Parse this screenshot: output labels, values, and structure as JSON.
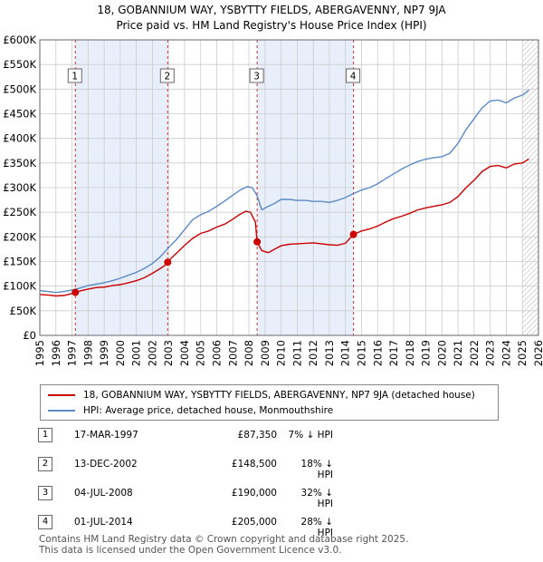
{
  "title_line1": "18, GOBANNIUM WAY, YSBYTTY FIELDS, ABERGAVENNY, NP7 9JA",
  "title_line2": "Price paid vs. HM Land Registry's House Price Index (HPI)",
  "colors": {
    "property": "#cc0000",
    "hpi": "#5b8ac6",
    "shade": "#e8effa",
    "grid": "#cccccc",
    "vline": "#cc3333"
  },
  "legend": {
    "property_label": "18, GOBANNIUM WAY, YSBYTTY FIELDS, ABERGAVENNY, NP7 9JA (detached house)",
    "hpi_label": "HPI: Average price, detached house, Monmouthshire"
  },
  "transactions": [
    {
      "num": "1",
      "date": "17-MAR-1997",
      "price": "£87,350",
      "hpi": "7% ↓ HPI"
    },
    {
      "num": "2",
      "date": "13-DEC-2002",
      "price": "£148,500",
      "hpi": "18% ↓ HPI"
    },
    {
      "num": "3",
      "date": "04-JUL-2008",
      "price": "£190,000",
      "hpi": "32% ↓ HPI"
    },
    {
      "num": "4",
      "date": "01-JUL-2014",
      "price": "£205,000",
      "hpi": "28% ↓ HPI"
    }
  ],
  "footer": {
    "line1": "Contains HM Land Registry data © Crown copyright and database right 2025.",
    "line2": "This data is licensed under the Open Government Licence v3.0."
  },
  "chart_data": {
    "type": "line",
    "xlim": [
      1995,
      2026
    ],
    "ylim": [
      0,
      600000
    ],
    "yticks": [
      0,
      50000,
      100000,
      150000,
      200000,
      250000,
      300000,
      350000,
      400000,
      450000,
      500000,
      550000,
      600000
    ],
    "ytick_labels": [
      "£0",
      "£50K",
      "£100K",
      "£150K",
      "£200K",
      "£250K",
      "£300K",
      "£350K",
      "£400K",
      "£450K",
      "£500K",
      "£550K",
      "£600K"
    ],
    "xticks": [
      1995,
      1996,
      1997,
      1998,
      1999,
      2000,
      2001,
      2002,
      2003,
      2004,
      2005,
      2006,
      2007,
      2008,
      2009,
      2010,
      2011,
      2012,
      2013,
      2014,
      2015,
      2016,
      2017,
      2018,
      2019,
      2020,
      2021,
      2022,
      2023,
      2024,
      2025,
      2026
    ],
    "grid": true,
    "shaded_ranges": [
      [
        1997.21,
        2002.95
      ],
      [
        2008.51,
        2014.5
      ]
    ],
    "hatched_from": 2025.0,
    "sales": [
      {
        "label": "1",
        "x": 1997.21,
        "y": 87350
      },
      {
        "label": "2",
        "x": 2002.95,
        "y": 148500
      },
      {
        "label": "3",
        "x": 2008.51,
        "y": 190000
      },
      {
        "label": "4",
        "x": 2014.5,
        "y": 205000
      }
    ],
    "series": [
      {
        "name": "18, GOBANNIUM WAY, YSBYTTY FIELDS, ABERGAVENNY, NP7 9JA (detached house)",
        "points": [
          [
            1995,
            83000
          ],
          [
            1995.5,
            82000
          ],
          [
            1996,
            80000
          ],
          [
            1996.5,
            81000
          ],
          [
            1997,
            85000
          ],
          [
            1997.21,
            87350
          ],
          [
            1997.6,
            91000
          ],
          [
            1998,
            94000
          ],
          [
            1998.5,
            97000
          ],
          [
            1999,
            98000
          ],
          [
            1999.5,
            101000
          ],
          [
            2000,
            103000
          ],
          [
            2000.5,
            107000
          ],
          [
            2001,
            111000
          ],
          [
            2001.5,
            117000
          ],
          [
            2002,
            126000
          ],
          [
            2002.5,
            136000
          ],
          [
            2002.9,
            145000
          ],
          [
            2002.95,
            148500
          ],
          [
            2003.2,
            158000
          ],
          [
            2003.6,
            170000
          ],
          [
            2004,
            183000
          ],
          [
            2004.5,
            197000
          ],
          [
            2005,
            207000
          ],
          [
            2005.5,
            212000
          ],
          [
            2006,
            220000
          ],
          [
            2006.5,
            226000
          ],
          [
            2007,
            236000
          ],
          [
            2007.4,
            245000
          ],
          [
            2007.8,
            252000
          ],
          [
            2008.1,
            250000
          ],
          [
            2008.4,
            230000
          ],
          [
            2008.51,
            190000
          ],
          [
            2008.8,
            172000
          ],
          [
            2009.2,
            168000
          ],
          [
            2009.6,
            175000
          ],
          [
            2010,
            182000
          ],
          [
            2010.5,
            185000
          ],
          [
            2011,
            186000
          ],
          [
            2011.5,
            187000
          ],
          [
            2012,
            188000
          ],
          [
            2012.5,
            186000
          ],
          [
            2013,
            184000
          ],
          [
            2013.5,
            183000
          ],
          [
            2014,
            187000
          ],
          [
            2014.5,
            205000
          ],
          [
            2015,
            212000
          ],
          [
            2015.5,
            216000
          ],
          [
            2016,
            222000
          ],
          [
            2016.5,
            230000
          ],
          [
            2017,
            237000
          ],
          [
            2017.5,
            242000
          ],
          [
            2018,
            248000
          ],
          [
            2018.5,
            255000
          ],
          [
            2019,
            259000
          ],
          [
            2019.5,
            262000
          ],
          [
            2020,
            265000
          ],
          [
            2020.5,
            270000
          ],
          [
            2021,
            282000
          ],
          [
            2021.5,
            300000
          ],
          [
            2022,
            315000
          ],
          [
            2022.5,
            333000
          ],
          [
            2023,
            343000
          ],
          [
            2023.5,
            345000
          ],
          [
            2024,
            340000
          ],
          [
            2024.5,
            348000
          ],
          [
            2025,
            350000
          ],
          [
            2025.4,
            358000
          ]
        ]
      },
      {
        "name": "HPI: Average price, detached house, Monmouthshire",
        "points": [
          [
            1995,
            91000
          ],
          [
            1995.5,
            89000
          ],
          [
            1996,
            87000
          ],
          [
            1996.5,
            89000
          ],
          [
            1997,
            92000
          ],
          [
            1997.5,
            96000
          ],
          [
            1998,
            101000
          ],
          [
            1998.5,
            104000
          ],
          [
            1999,
            107000
          ],
          [
            1999.5,
            111000
          ],
          [
            2000,
            116000
          ],
          [
            2000.5,
            122000
          ],
          [
            2001,
            128000
          ],
          [
            2001.5,
            136000
          ],
          [
            2002,
            146000
          ],
          [
            2002.5,
            160000
          ],
          [
            2003,
            178000
          ],
          [
            2003.5,
            195000
          ],
          [
            2004,
            215000
          ],
          [
            2004.5,
            235000
          ],
          [
            2005,
            245000
          ],
          [
            2005.5,
            252000
          ],
          [
            2006,
            262000
          ],
          [
            2006.5,
            273000
          ],
          [
            2007,
            285000
          ],
          [
            2007.5,
            296000
          ],
          [
            2007.9,
            302000
          ],
          [
            2008.2,
            300000
          ],
          [
            2008.5,
            284000
          ],
          [
            2008.8,
            255000
          ],
          [
            2009.2,
            262000
          ],
          [
            2009.6,
            268000
          ],
          [
            2010,
            276000
          ],
          [
            2010.5,
            276000
          ],
          [
            2011,
            274000
          ],
          [
            2011.5,
            274000
          ],
          [
            2012,
            272000
          ],
          [
            2012.5,
            272000
          ],
          [
            2013,
            270000
          ],
          [
            2013.5,
            274000
          ],
          [
            2014,
            280000
          ],
          [
            2014.5,
            288000
          ],
          [
            2015,
            295000
          ],
          [
            2015.5,
            300000
          ],
          [
            2016,
            308000
          ],
          [
            2016.5,
            318000
          ],
          [
            2017,
            328000
          ],
          [
            2017.5,
            338000
          ],
          [
            2018,
            346000
          ],
          [
            2018.5,
            353000
          ],
          [
            2019,
            358000
          ],
          [
            2019.5,
            361000
          ],
          [
            2020,
            363000
          ],
          [
            2020.5,
            370000
          ],
          [
            2021,
            390000
          ],
          [
            2021.5,
            418000
          ],
          [
            2022,
            440000
          ],
          [
            2022.5,
            462000
          ],
          [
            2023,
            476000
          ],
          [
            2023.5,
            478000
          ],
          [
            2024,
            472000
          ],
          [
            2024.5,
            482000
          ],
          [
            2025,
            488000
          ],
          [
            2025.4,
            498000
          ]
        ]
      }
    ]
  }
}
